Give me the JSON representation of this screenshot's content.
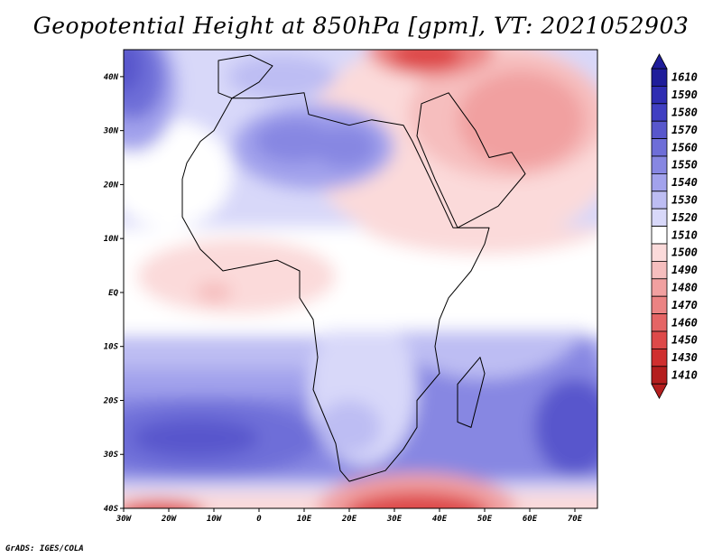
{
  "title": "Geopotential Height at 850hPa [gpm], VT: 2021052903",
  "footer": "GrADS: IGES/COLA",
  "colors": {
    "background": "#ffffff",
    "border": "#000000",
    "coast": "#000000"
  },
  "map": {
    "lat_ticks": [
      {
        "deg": 40,
        "label": "40N"
      },
      {
        "deg": 30,
        "label": "30N"
      },
      {
        "deg": 20,
        "label": "20N"
      },
      {
        "deg": 10,
        "label": "10N"
      },
      {
        "deg": 0,
        "label": "EQ"
      },
      {
        "deg": -10,
        "label": "10S"
      },
      {
        "deg": -20,
        "label": "20S"
      },
      {
        "deg": -30,
        "label": "30S"
      },
      {
        "deg": -40,
        "label": "40S"
      }
    ],
    "lon_ticks": [
      {
        "deg": -30,
        "label": "30W"
      },
      {
        "deg": -20,
        "label": "20W"
      },
      {
        "deg": -10,
        "label": "10W"
      },
      {
        "deg": 0,
        "label": "0"
      },
      {
        "deg": 10,
        "label": "10E"
      },
      {
        "deg": 20,
        "label": "20E"
      },
      {
        "deg": 30,
        "label": "30E"
      },
      {
        "deg": 40,
        "label": "40E"
      },
      {
        "deg": 50,
        "label": "50E"
      },
      {
        "deg": 60,
        "label": "60E"
      },
      {
        "deg": 70,
        "label": "70E"
      }
    ]
  },
  "colorbar": {
    "levels": [
      {
        "label": "1610",
        "color": "#1f1d9a"
      },
      {
        "label": "1590",
        "color": "#2f2db2"
      },
      {
        "label": "1580",
        "color": "#403fc2"
      },
      {
        "label": "1570",
        "color": "#5857cc"
      },
      {
        "label": "1560",
        "color": "#6e6ed8"
      },
      {
        "label": "1550",
        "color": "#8787e2"
      },
      {
        "label": "1540",
        "color": "#a2a2ec"
      },
      {
        "label": "1530",
        "color": "#bdbdf3"
      },
      {
        "label": "1520",
        "color": "#d8d8f9"
      },
      {
        "label": "1510",
        "color": "#ffffff"
      },
      {
        "label": "1500",
        "color": "#fbdada"
      },
      {
        "label": "1490",
        "color": "#f6bebe"
      },
      {
        "label": "1480",
        "color": "#f1a0a0"
      },
      {
        "label": "1470",
        "color": "#eb8383"
      },
      {
        "label": "1460",
        "color": "#e56565"
      },
      {
        "label": "1450",
        "color": "#de4949"
      },
      {
        "label": "1430",
        "color": "#cf2f2f"
      },
      {
        "label": "1410",
        "color": "#b41e1e"
      }
    ]
  },
  "regions": {
    "south_indian_high": "1560",
    "south_atlantic_high": "1560",
    "north_atlantic_high": "1570",
    "sahara_high": "1550",
    "southern_ocean_low": "1430",
    "cape_low": "1450",
    "middle_east_low": "1460",
    "equatorial_band": "1500"
  }
}
